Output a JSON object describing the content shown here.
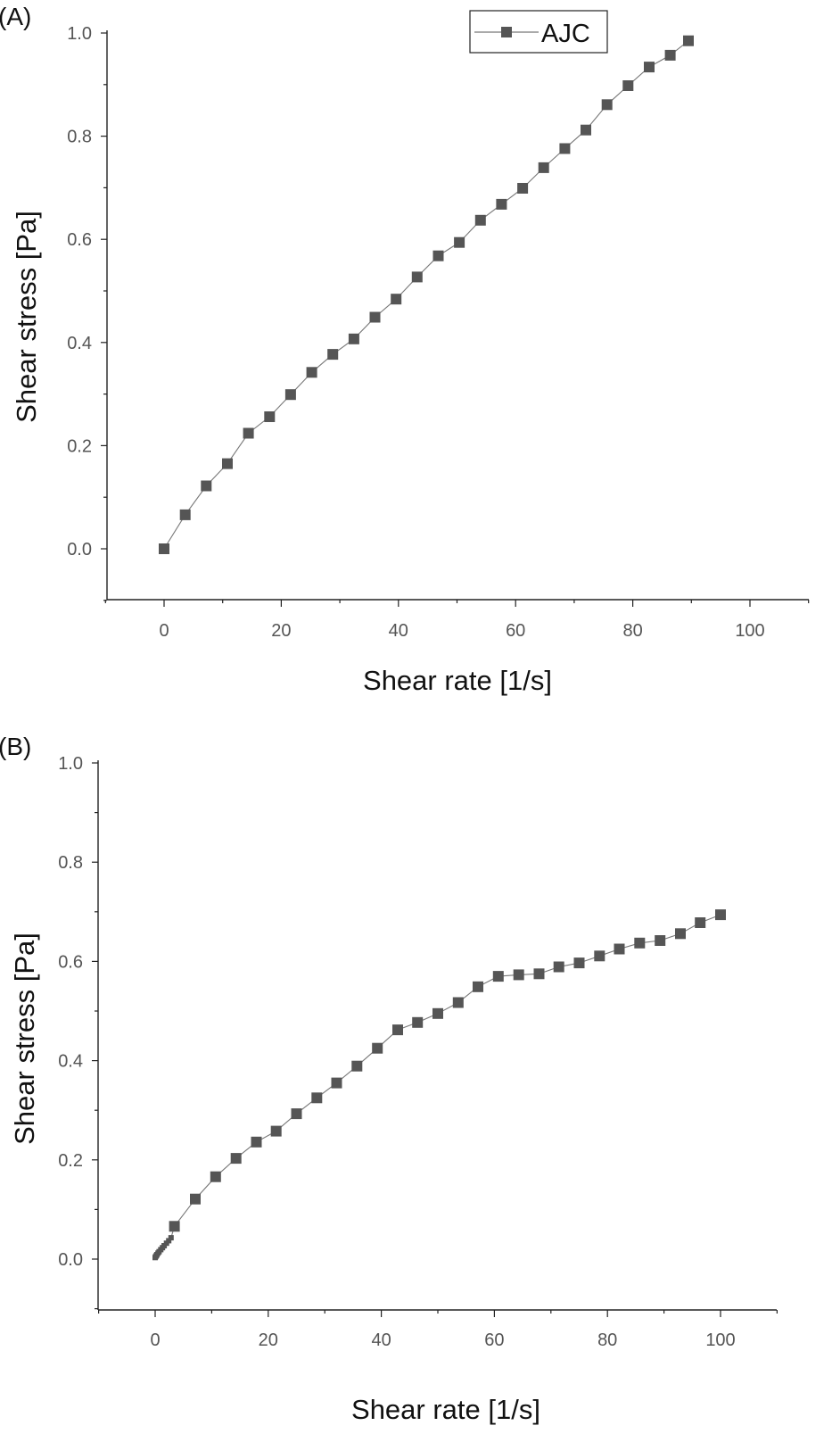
{
  "colors": {
    "marker": "#555555",
    "line": "#777777",
    "axis": "#222222"
  },
  "chart_data": [
    {
      "panel_label": "(A)",
      "type": "line",
      "xlabel": "Shear rate [1/s]",
      "ylabel": "Shear stress [Pa]",
      "xlim": [
        -10,
        110
      ],
      "ylim": [
        -0.1,
        1.0
      ],
      "xticks": [
        "0",
        "20",
        "40",
        "60",
        "80",
        "100"
      ],
      "yticks": [
        "0.0",
        "0.2",
        "0.4",
        "0.6",
        "0.8",
        "1.0"
      ],
      "legend": {
        "placement": "top-center",
        "entries": [
          "AJC"
        ]
      },
      "series": [
        {
          "name": "AJC",
          "marker": "square",
          "x": [
            0,
            3.6,
            7.2,
            10.8,
            14.4,
            18,
            21.6,
            25.2,
            28.8,
            32.4,
            36,
            39.6,
            43.2,
            46.8,
            50.4,
            54,
            57.6,
            61.2,
            64.8,
            68.4,
            72,
            75.6,
            79.2,
            82.8,
            86.4,
            89.5
          ],
          "y": [
            0.0,
            0.066,
            0.122,
            0.165,
            0.224,
            0.256,
            0.299,
            0.342,
            0.377,
            0.407,
            0.449,
            0.484,
            0.527,
            0.568,
            0.594,
            0.637,
            0.668,
            0.699,
            0.739,
            0.776,
            0.812,
            0.861,
            0.898,
            0.934,
            0.957,
            0.985
          ]
        }
      ]
    },
    {
      "panel_label": "(B)",
      "type": "line",
      "xlabel": "Shear rate [1/s]",
      "ylabel": "Shear stress [Pa]",
      "xlim": [
        -10,
        110
      ],
      "ylim": [
        -0.1,
        1.0
      ],
      "xticks": [
        "0",
        "20",
        "40",
        "60",
        "80",
        "100"
      ],
      "yticks": [
        "0.0",
        "0.2",
        "0.4",
        "0.6",
        "0.8",
        "1.0"
      ],
      "series": [
        {
          "marker": "square",
          "x": [
            0,
            0.1,
            0.2,
            0.3,
            0.5,
            0.7,
            1.0,
            1.3,
            1.6,
            2.0,
            2.4,
            2.8,
            3.4,
            7.1,
            10.7,
            14.3,
            17.9,
            21.4,
            25,
            28.6,
            32.1,
            35.7,
            39.3,
            42.9,
            46.4,
            50,
            53.6,
            57.1,
            60.7,
            64.3,
            67.9,
            71.4,
            75,
            78.6,
            82.1,
            85.7,
            89.3,
            92.9,
            96.4,
            100
          ],
          "y": [
            0.003,
            0.005,
            0.007,
            0.009,
            0.012,
            0.015,
            0.019,
            0.023,
            0.027,
            0.032,
            0.037,
            0.043,
            0.066,
            0.121,
            0.166,
            0.203,
            0.236,
            0.258,
            0.293,
            0.325,
            0.355,
            0.389,
            0.425,
            0.462,
            0.477,
            0.495,
            0.517,
            0.549,
            0.57,
            0.573,
            0.575,
            0.589,
            0.597,
            0.611,
            0.625,
            0.637,
            0.642,
            0.656,
            0.678,
            0.694
          ]
        }
      ]
    }
  ]
}
